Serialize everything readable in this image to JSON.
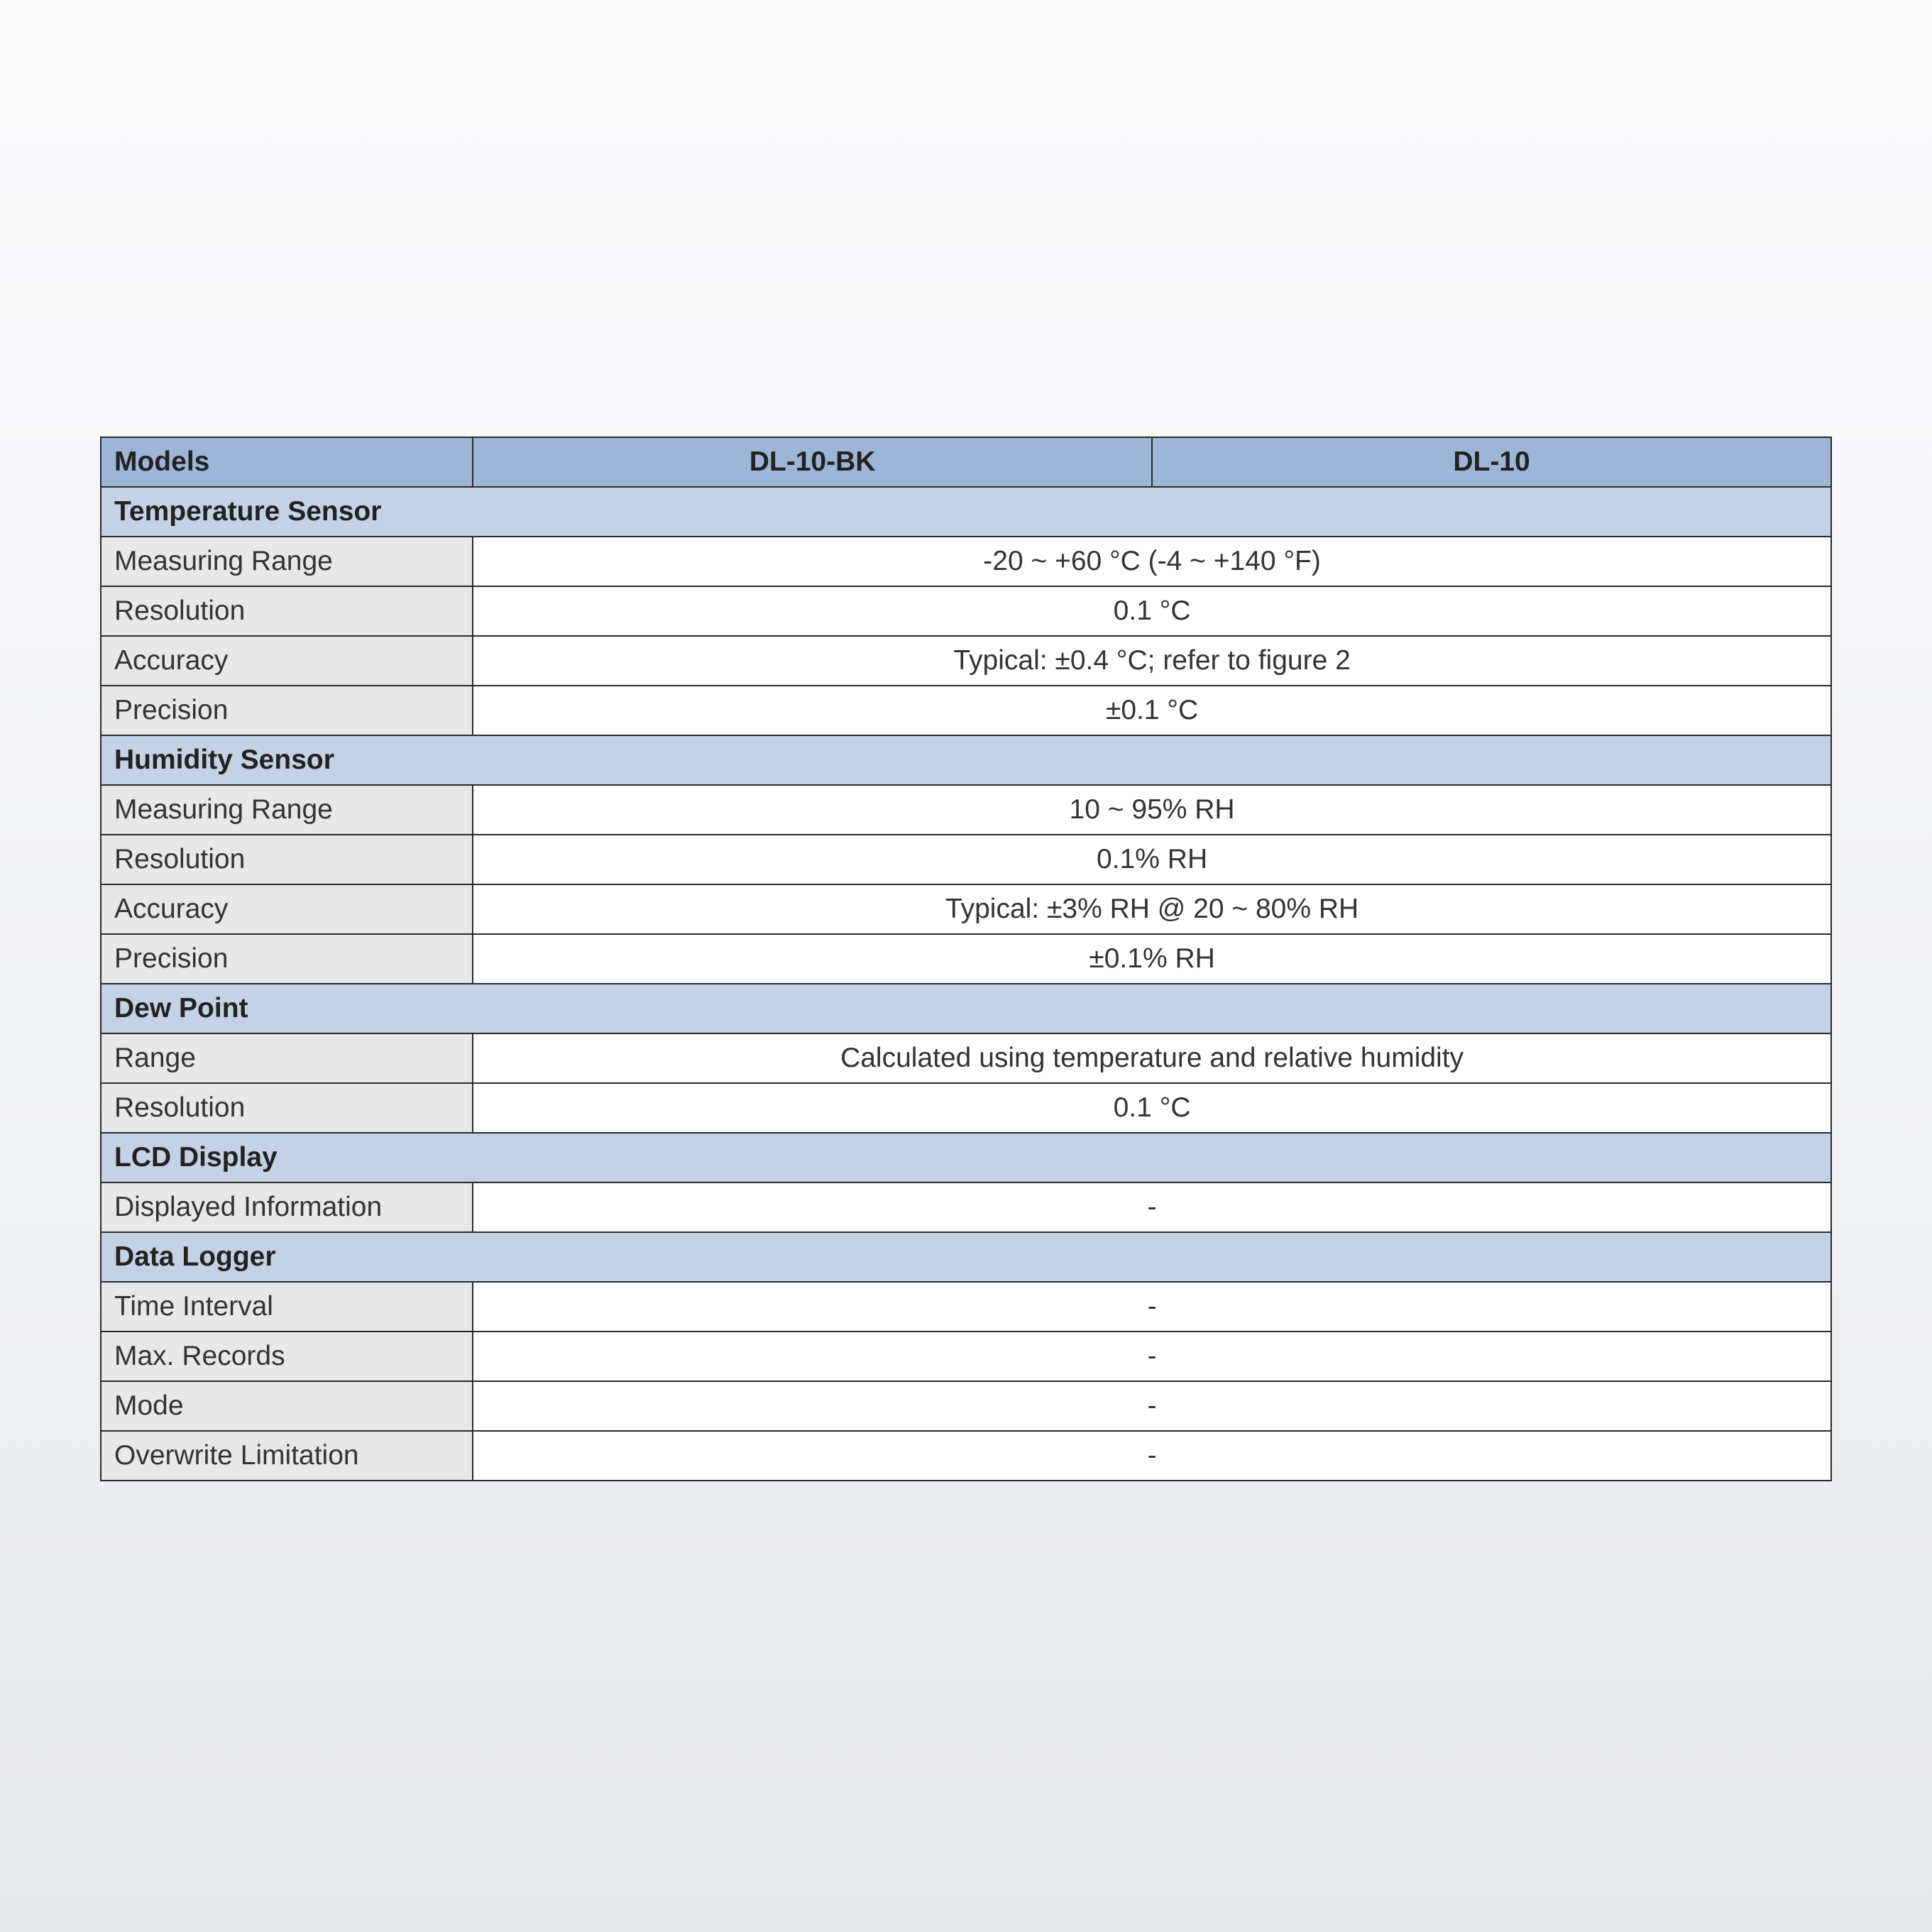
{
  "table": {
    "header": {
      "label": "Models",
      "models": [
        "DL-10-BK",
        "DL-10"
      ]
    },
    "sections": [
      {
        "title": "Temperature Sensor",
        "rows": [
          {
            "label": "Measuring Range",
            "value": "-20 ~ +60 °C (-4 ~ +140 °F)"
          },
          {
            "label": "Resolution",
            "value": "0.1 °C"
          },
          {
            "label": "Accuracy",
            "value": "Typical: ±0.4 °C; refer to figure 2"
          },
          {
            "label": "Precision",
            "value": "±0.1 °C"
          }
        ]
      },
      {
        "title": "Humidity Sensor",
        "rows": [
          {
            "label": "Measuring Range",
            "value": "10 ~ 95% RH"
          },
          {
            "label": "Resolution",
            "value": "0.1% RH"
          },
          {
            "label": "Accuracy",
            "value": "Typical: ±3% RH @ 20 ~ 80% RH"
          },
          {
            "label": "Precision",
            "value": "±0.1% RH"
          }
        ]
      },
      {
        "title": "Dew Point",
        "rows": [
          {
            "label": "Range",
            "value": "Calculated using temperature and relative humidity"
          },
          {
            "label": "Resolution",
            "value": "0.1 °C"
          }
        ]
      },
      {
        "title": "LCD Display",
        "rows": [
          {
            "label": "Displayed Information",
            "value": "-"
          }
        ]
      },
      {
        "title": "Data Logger",
        "rows": [
          {
            "label": "Time Interval",
            "value": "-"
          },
          {
            "label": "Max. Records",
            "value": "-"
          },
          {
            "label": "Mode",
            "value": "-"
          },
          {
            "label": "Overwrite Limitation",
            "value": "-"
          }
        ]
      }
    ]
  },
  "colors": {
    "header_bg": "#9db5d6",
    "section_bg": "#c4d2e6",
    "label_bg": "#e8e8e8",
    "value_bg": "#ffffff",
    "border": "#2a2a2a",
    "text": "#222222"
  }
}
